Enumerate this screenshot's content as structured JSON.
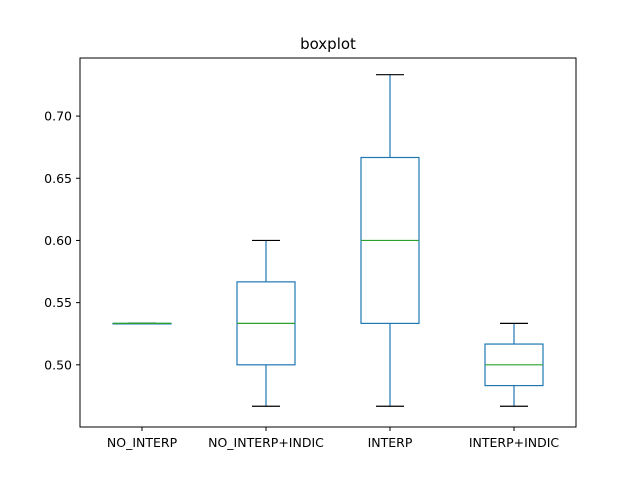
{
  "chart_data": {
    "type": "boxplot",
    "title": "boxplot",
    "xlabel": "",
    "ylabel": "",
    "categories": [
      "NO_INTERP",
      "NO_INTERP+INDIC",
      "INTERP",
      "INTERP+INDIC"
    ],
    "boxes": [
      {
        "whislo": 0.5333,
        "q1": 0.5333,
        "med": 0.5333,
        "q3": 0.5333,
        "whishi": 0.5333
      },
      {
        "whislo": 0.4667,
        "q1": 0.5,
        "med": 0.5333,
        "q3": 0.5667,
        "whishi": 0.6
      },
      {
        "whislo": 0.4667,
        "q1": 0.5333,
        "med": 0.6,
        "q3": 0.6667,
        "whishi": 0.7333
      },
      {
        "whislo": 0.4667,
        "q1": 0.4833,
        "med": 0.5,
        "q3": 0.5167,
        "whishi": 0.5333
      }
    ],
    "yticks": [
      0.5,
      0.55,
      0.6,
      0.65,
      0.7
    ],
    "ytick_labels": [
      "0.50",
      "0.55",
      "0.60",
      "0.65",
      "0.70"
    ],
    "ylim": [
      0.45,
      0.7467
    ],
    "grid": false,
    "colors": {
      "box": "#1f77b4",
      "median": "#2ca02c",
      "cap": "#000000",
      "axes": "#000000"
    }
  }
}
